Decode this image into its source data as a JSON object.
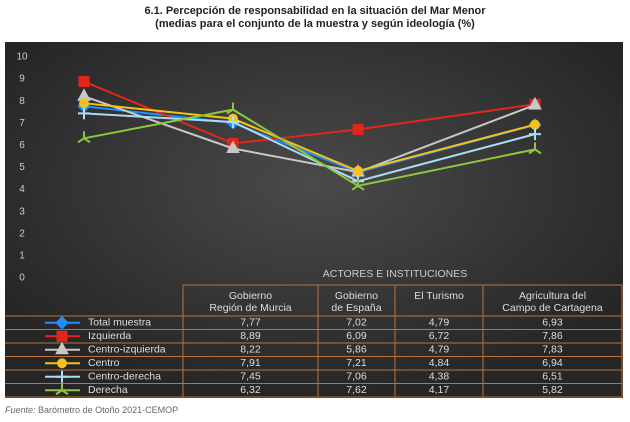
{
  "chart_data": {
    "type": "line",
    "title": "6.1. Percepción de responsabilidad en la situación del Mar Menor",
    "subtitle": "(medias para el conjunto de la muestra y según ideología (%)",
    "x_label": "ACTORES E INSTITUCIONES",
    "categories": [
      "Gobierno\nRegión de Murcia",
      "Gobierno\nde España",
      "El Turismo",
      "Agricultura del\nCampo de Cartagena"
    ],
    "ylim": [
      0,
      10
    ],
    "yticks": [
      0,
      1,
      2,
      3,
      4,
      5,
      6,
      7,
      8,
      9,
      10
    ],
    "series": [
      {
        "name": "Total muestra",
        "color": "#1f8fff",
        "marker": "diamond",
        "values": [
          7.77,
          7.02,
          4.79,
          6.93
        ],
        "value_labels": [
          "7,77",
          "7,02",
          "4,79",
          "6,93"
        ]
      },
      {
        "name": "Izquierda",
        "color": "#e3261b",
        "marker": "square",
        "values": [
          8.89,
          6.09,
          6.72,
          7.86
        ],
        "value_labels": [
          "8,89",
          "6,09",
          "6,72",
          "7,86"
        ]
      },
      {
        "name": "Centro-izquierda",
        "color": "#c8c8c8",
        "marker": "triangle",
        "values": [
          8.22,
          5.86,
          4.79,
          7.83
        ],
        "value_labels": [
          "8,22",
          "5,86",
          "4,79",
          "7,83"
        ]
      },
      {
        "name": "Centro",
        "color": "#f4c21a",
        "marker": "circle",
        "values": [
          7.91,
          7.21,
          4.84,
          6.94
        ],
        "value_labels": [
          "7,91",
          "7,21",
          "4,84",
          "6,94"
        ]
      },
      {
        "name": "Centro-derecha",
        "color": "#a9dcf5",
        "marker": "cross",
        "values": [
          7.45,
          7.06,
          4.38,
          6.51
        ],
        "value_labels": [
          "7,45",
          "7,06",
          "4,38",
          "6,51"
        ]
      },
      {
        "name": "Derecha",
        "color": "#8dc63f",
        "marker": "star",
        "values": [
          6.32,
          7.62,
          4.17,
          5.82
        ],
        "value_labels": [
          "6,32",
          "7,62",
          "4,17",
          "5,82"
        ]
      }
    ],
    "source_label": "Fuente:",
    "source": "Barómetro de Otoño 2021-CEMOP"
  }
}
